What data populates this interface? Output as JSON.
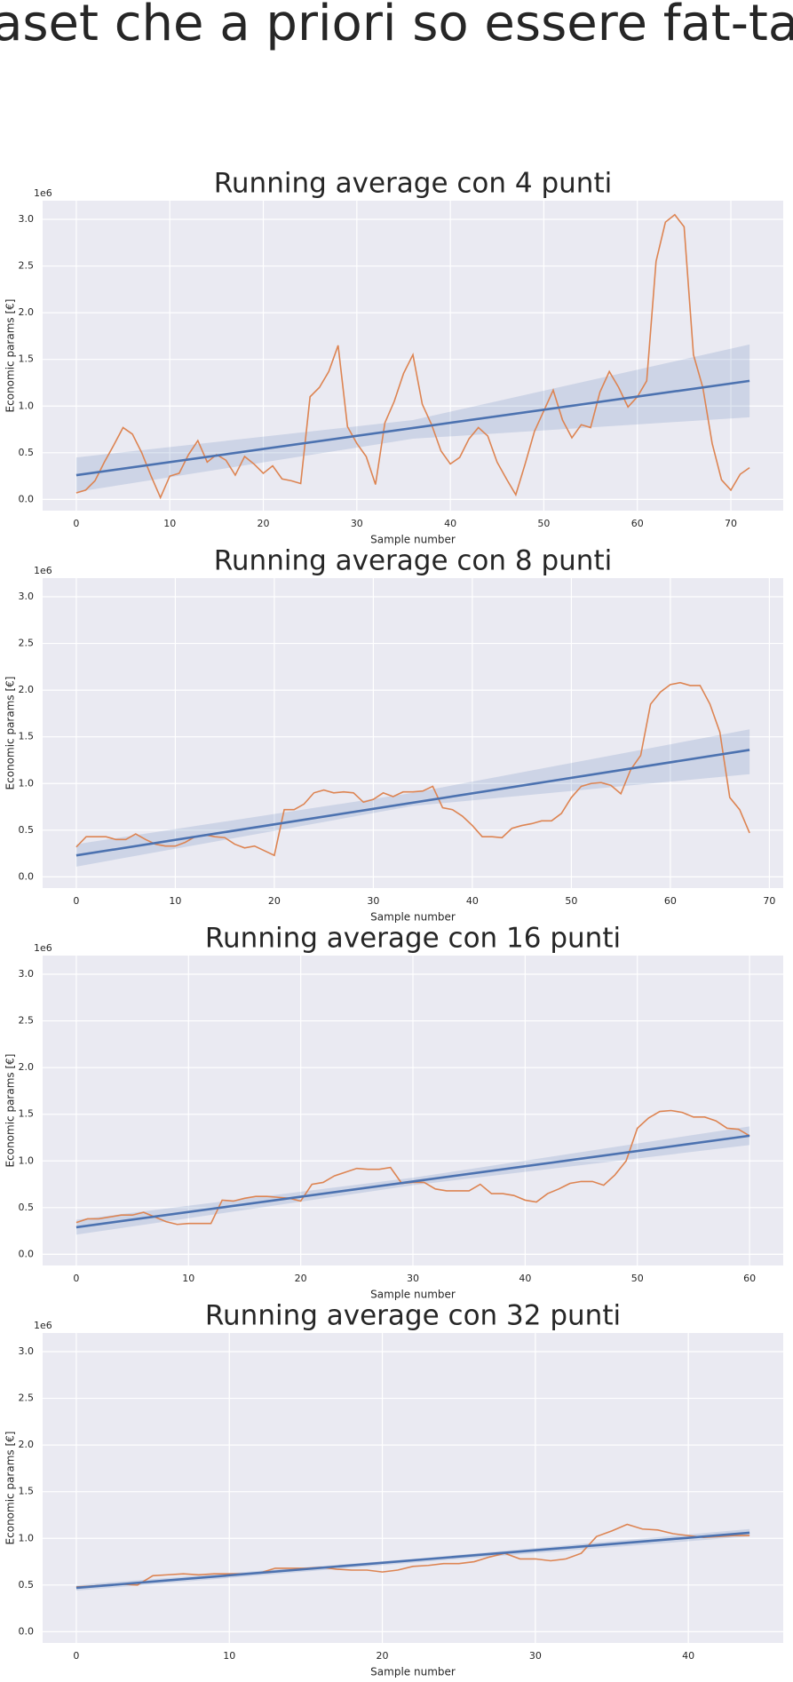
{
  "title": "Dataset che a priori so essere fat-tailed",
  "chart_data": [
    {
      "type": "line",
      "title": "Running average con 4 punti",
      "offset_text": "1e6",
      "xlabel": "Sample number",
      "ylabel": "Economic params [€]",
      "grid": true,
      "xlim": [
        -3.6,
        75.6
      ],
      "xticks": [
        0,
        10,
        20,
        30,
        40,
        50,
        60,
        70
      ],
      "ylim": [
        -0.12,
        3.2
      ],
      "yticks": [
        {
          "value": 0,
          "label": "0.0"
        },
        0.5,
        {
          "value": 1,
          "label": "1.0"
        },
        1.5,
        {
          "value": 2,
          "label": "2.0"
        },
        2.5,
        {
          "value": 3,
          "label": "3.0"
        }
      ],
      "x": [
        0,
        1,
        2,
        3,
        4,
        5,
        6,
        7,
        8,
        9,
        10,
        11,
        12,
        13,
        14,
        15,
        16,
        17,
        18,
        19,
        20,
        21,
        22,
        23,
        24,
        25,
        26,
        27,
        28,
        29,
        30,
        31,
        32,
        33,
        34,
        35,
        36,
        37,
        38,
        39,
        40,
        41,
        42,
        43,
        44,
        45,
        46,
        47,
        48,
        49,
        50,
        51,
        52,
        53,
        54,
        55,
        56,
        57,
        58,
        59,
        60,
        61,
        62,
        63,
        64,
        65,
        66,
        67,
        68,
        69,
        70,
        71,
        72
      ],
      "series": [
        {
          "color": "#dd8452",
          "values": [
            0.07,
            0.1,
            0.2,
            0.4,
            0.58,
            0.77,
            0.7,
            0.5,
            0.25,
            0.02,
            0.25,
            0.28,
            0.48,
            0.63,
            0.4,
            0.48,
            0.42,
            0.26,
            0.46,
            0.38,
            0.28,
            0.36,
            0.22,
            0.2,
            0.17,
            1.1,
            1.2,
            1.37,
            1.65,
            0.78,
            0.6,
            0.46,
            0.16,
            0.82,
            1.05,
            1.35,
            1.55,
            1.02,
            0.8,
            0.52,
            0.38,
            0.45,
            0.65,
            0.77,
            0.68,
            0.4,
            0.22,
            0.05,
            0.38,
            0.73,
            0.95,
            1.17,
            0.85,
            0.66,
            0.8,
            0.77,
            1.15,
            1.37,
            1.2,
            0.99,
            1.1,
            1.27,
            2.55,
            2.97,
            3.05,
            2.92,
            1.55,
            1.2,
            0.6,
            0.21,
            0.1,
            0.27,
            0.34
          ]
        }
      ],
      "fit": {
        "color": "#4c72b0",
        "x": [
          0,
          72
        ],
        "values": [
          0.26,
          1.27
        ],
        "band_x": [
          0,
          36,
          72
        ],
        "band_lower": [
          0.08,
          0.65,
          0.88
        ],
        "band_upper": [
          0.45,
          0.85,
          1.66
        ]
      }
    },
    {
      "type": "line",
      "title": "Running average con 8 punti",
      "offset_text": "1e6",
      "xlabel": "Sample number",
      "ylabel": "Economic params [€]",
      "grid": true,
      "xlim": [
        -3.4,
        71.4
      ],
      "xticks": [
        0,
        10,
        20,
        30,
        40,
        50,
        60,
        70
      ],
      "ylim": [
        -0.12,
        3.2
      ],
      "yticks": [
        {
          "value": 0,
          "label": "0.0"
        },
        0.5,
        {
          "value": 1,
          "label": "1.0"
        },
        1.5,
        {
          "value": 2,
          "label": "2.0"
        },
        2.5,
        {
          "value": 3,
          "label": "3.0"
        }
      ],
      "x": [
        0,
        1,
        2,
        3,
        4,
        5,
        6,
        7,
        8,
        9,
        10,
        11,
        12,
        13,
        14,
        15,
        16,
        17,
        18,
        19,
        20,
        21,
        22,
        23,
        24,
        25,
        26,
        27,
        28,
        29,
        30,
        31,
        32,
        33,
        34,
        35,
        36,
        37,
        38,
        39,
        40,
        41,
        42,
        43,
        44,
        45,
        46,
        47,
        48,
        49,
        50,
        51,
        52,
        53,
        54,
        55,
        56,
        57,
        58,
        59,
        60,
        61,
        62,
        63,
        64,
        65,
        66,
        67,
        68
      ],
      "series": [
        {
          "color": "#dd8452",
          "values": [
            0.32,
            0.43,
            0.43,
            0.43,
            0.4,
            0.4,
            0.46,
            0.4,
            0.35,
            0.33,
            0.33,
            0.37,
            0.43,
            0.45,
            0.43,
            0.42,
            0.35,
            0.31,
            0.33,
            0.28,
            0.23,
            0.72,
            0.72,
            0.78,
            0.9,
            0.93,
            0.9,
            0.91,
            0.9,
            0.8,
            0.83,
            0.9,
            0.86,
            0.91,
            0.91,
            0.92,
            0.97,
            0.74,
            0.72,
            0.65,
            0.55,
            0.43,
            0.43,
            0.42,
            0.52,
            0.55,
            0.57,
            0.6,
            0.6,
            0.68,
            0.85,
            0.97,
            1.0,
            1.01,
            0.98,
            0.89,
            1.15,
            1.3,
            1.85,
            1.98,
            2.06,
            2.08,
            2.05,
            2.05,
            1.85,
            1.55,
            0.85,
            0.72,
            0.47
          ]
        }
      ],
      "fit": {
        "color": "#4c72b0",
        "x": [
          0,
          68
        ],
        "values": [
          0.23,
          1.36
        ],
        "band_x": [
          0,
          34,
          68
        ],
        "band_lower": [
          0.11,
          0.76,
          1.1
        ],
        "band_upper": [
          0.35,
          0.9,
          1.58
        ]
      }
    },
    {
      "type": "line",
      "title": "Running average con 16 punti",
      "offset_text": "1e6",
      "xlabel": "Sample number",
      "ylabel": "Economic params [€]",
      "grid": true,
      "xlim": [
        -3,
        63
      ],
      "xticks": [
        0,
        10,
        20,
        30,
        40,
        50,
        60
      ],
      "ylim": [
        -0.12,
        3.2
      ],
      "yticks": [
        {
          "value": 0,
          "label": "0.0"
        },
        0.5,
        {
          "value": 1,
          "label": "1.0"
        },
        1.5,
        {
          "value": 2,
          "label": "2.0"
        },
        2.5,
        {
          "value": 3,
          "label": "3.0"
        }
      ],
      "x": [
        0,
        1,
        2,
        3,
        4,
        5,
        6,
        7,
        8,
        9,
        10,
        11,
        12,
        13,
        14,
        15,
        16,
        17,
        18,
        19,
        20,
        21,
        22,
        23,
        24,
        25,
        26,
        27,
        28,
        29,
        30,
        31,
        32,
        33,
        34,
        35,
        36,
        37,
        38,
        39,
        40,
        41,
        42,
        43,
        44,
        45,
        46,
        47,
        48,
        49,
        50,
        51,
        52,
        53,
        54,
        55,
        56,
        57,
        58,
        59,
        60
      ],
      "series": [
        {
          "color": "#dd8452",
          "values": [
            0.34,
            0.38,
            0.38,
            0.4,
            0.42,
            0.42,
            0.45,
            0.4,
            0.35,
            0.32,
            0.33,
            0.33,
            0.33,
            0.58,
            0.57,
            0.6,
            0.62,
            0.62,
            0.61,
            0.6,
            0.57,
            0.75,
            0.77,
            0.84,
            0.88,
            0.92,
            0.91,
            0.91,
            0.93,
            0.76,
            0.77,
            0.77,
            0.7,
            0.68,
            0.68,
            0.68,
            0.75,
            0.65,
            0.65,
            0.63,
            0.58,
            0.56,
            0.65,
            0.7,
            0.76,
            0.78,
            0.78,
            0.74,
            0.85,
            1.0,
            1.35,
            1.46,
            1.53,
            1.54,
            1.52,
            1.47,
            1.47,
            1.43,
            1.35,
            1.34,
            1.27
          ]
        }
      ],
      "fit": {
        "color": "#4c72b0",
        "x": [
          0,
          60
        ],
        "values": [
          0.29,
          1.27
        ],
        "band_x": [
          0,
          30,
          60
        ],
        "band_lower": [
          0.21,
          0.74,
          1.17
        ],
        "band_upper": [
          0.37,
          0.82,
          1.37
        ]
      }
    },
    {
      "type": "line",
      "title": "Running average con 32 punti",
      "offset_text": "1e6",
      "xlabel": "Sample number",
      "ylabel": "Economic params [€]",
      "grid": true,
      "xlim": [
        -2.2,
        46.2
      ],
      "xticks": [
        0,
        10,
        20,
        30,
        40
      ],
      "ylim": [
        -0.12,
        3.2
      ],
      "yticks": [
        {
          "value": 0,
          "label": "0.0"
        },
        0.5,
        {
          "value": 1,
          "label": "1.0"
        },
        1.5,
        {
          "value": 2,
          "label": "2.0"
        },
        2.5,
        {
          "value": 3,
          "label": "3.0"
        }
      ],
      "x": [
        0,
        1,
        2,
        3,
        4,
        5,
        6,
        7,
        8,
        9,
        10,
        11,
        12,
        13,
        14,
        15,
        16,
        17,
        18,
        19,
        20,
        21,
        22,
        23,
        24,
        25,
        26,
        27,
        28,
        29,
        30,
        31,
        32,
        33,
        34,
        35,
        36,
        37,
        38,
        39,
        40,
        41,
        42,
        43,
        44
      ],
      "series": [
        {
          "color": "#dd8452",
          "values": [
            0.48,
            0.49,
            0.5,
            0.51,
            0.5,
            0.6,
            0.61,
            0.62,
            0.61,
            0.62,
            0.62,
            0.62,
            0.63,
            0.68,
            0.68,
            0.68,
            0.69,
            0.67,
            0.66,
            0.66,
            0.64,
            0.66,
            0.7,
            0.71,
            0.73,
            0.73,
            0.75,
            0.8,
            0.84,
            0.78,
            0.78,
            0.76,
            0.78,
            0.84,
            1.02,
            1.08,
            1.15,
            1.1,
            1.09,
            1.05,
            1.03,
            1.01,
            1.02,
            1.03,
            1.03
          ]
        }
      ],
      "fit": {
        "color": "#4c72b0",
        "x": [
          0,
          44
        ],
        "values": [
          0.47,
          1.06
        ],
        "band_x": [
          0,
          22,
          44
        ],
        "band_lower": [
          0.44,
          0.74,
          1.02
        ],
        "band_upper": [
          0.5,
          0.78,
          1.1
        ]
      }
    }
  ]
}
